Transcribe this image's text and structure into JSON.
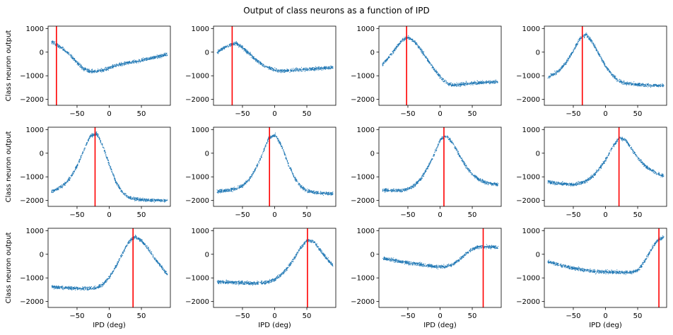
{
  "title": "Output of class neurons as a function of IPD",
  "xlabel": "IPD (deg)",
  "ylabel": "Class neuron output",
  "xlim": [
    -95,
    95
  ],
  "ylim": [
    -2250,
    1100
  ],
  "xticks": [
    -50,
    0,
    50
  ],
  "yticks": [
    1000,
    0,
    -1000,
    -2000
  ],
  "point_color": "#1f77b4",
  "line_color": "#ff0000",
  "chart_data": {
    "type": "scatter",
    "layout": "3x4 grid of subplots",
    "title": "Output of class neurons as a function of IPD",
    "xlabel": "IPD (deg)",
    "ylabel": "Class neuron output",
    "xlim": [
      -95,
      95
    ],
    "ylim": [
      -2250,
      1100
    ],
    "grid": false,
    "panels": [
      {
        "class_ipd": -82,
        "curve_x": [
          -90,
          -80,
          -70,
          -60,
          -50,
          -40,
          -30,
          -20,
          -10,
          0,
          10,
          20,
          30,
          40,
          50,
          60,
          70,
          80,
          90
        ],
        "curve_y": [
          450,
          300,
          100,
          -150,
          -450,
          -700,
          -800,
          -800,
          -750,
          -650,
          -550,
          -480,
          -430,
          -380,
          -320,
          -260,
          -200,
          -140,
          -80
        ]
      },
      {
        "class_ipd": -66,
        "curve_x": [
          -90,
          -80,
          -70,
          -60,
          -50,
          -40,
          -30,
          -20,
          -10,
          0,
          10,
          20,
          30,
          40,
          50,
          60,
          70,
          80,
          90
        ],
        "curve_y": [
          0,
          180,
          330,
          380,
          200,
          -50,
          -300,
          -500,
          -650,
          -750,
          -780,
          -770,
          -750,
          -730,
          -710,
          -690,
          -670,
          -650,
          -630
        ]
      },
      {
        "class_ipd": -52,
        "curve_x": [
          -90,
          -80,
          -70,
          -60,
          -50,
          -40,
          -30,
          -20,
          -10,
          0,
          10,
          20,
          30,
          40,
          50,
          60,
          70,
          80,
          90
        ],
        "curve_y": [
          -500,
          -200,
          150,
          500,
          650,
          450,
          100,
          -300,
          -700,
          -1050,
          -1300,
          -1380,
          -1360,
          -1320,
          -1300,
          -1280,
          -1260,
          -1250,
          -1240
        ]
      },
      {
        "class_ipd": -36,
        "curve_x": [
          -90,
          -80,
          -70,
          -60,
          -50,
          -40,
          -30,
          -20,
          -10,
          0,
          10,
          20,
          30,
          40,
          50,
          60,
          70,
          80,
          90
        ],
        "curve_y": [
          -1050,
          -900,
          -700,
          -350,
          100,
          600,
          750,
          400,
          -100,
          -600,
          -950,
          -1200,
          -1300,
          -1340,
          -1360,
          -1380,
          -1390,
          -1400,
          -1400
        ]
      },
      {
        "class_ipd": -22,
        "curve_x": [
          -90,
          -80,
          -70,
          -60,
          -50,
          -40,
          -30,
          -20,
          -10,
          0,
          10,
          20,
          30,
          40,
          50,
          60,
          70,
          80,
          90
        ],
        "curve_y": [
          -1600,
          -1500,
          -1300,
          -1000,
          -500,
          150,
          750,
          850,
          300,
          -500,
          -1200,
          -1650,
          -1850,
          -1920,
          -1950,
          -1970,
          -1980,
          -1990,
          -2000
        ]
      },
      {
        "class_ipd": -8,
        "curve_x": [
          -90,
          -80,
          -70,
          -60,
          -50,
          -40,
          -30,
          -20,
          -10,
          0,
          10,
          20,
          30,
          40,
          50,
          60,
          70,
          80,
          90
        ],
        "curve_y": [
          -1600,
          -1580,
          -1550,
          -1480,
          -1350,
          -1100,
          -650,
          -50,
          650,
          800,
          350,
          -400,
          -1000,
          -1400,
          -1580,
          -1640,
          -1670,
          -1690,
          -1700
        ]
      },
      {
        "class_ipd": 6,
        "curve_x": [
          -90,
          -80,
          -70,
          -60,
          -50,
          -40,
          -30,
          -20,
          -10,
          0,
          10,
          20,
          30,
          40,
          50,
          60,
          70,
          80,
          90
        ],
        "curve_y": [
          -1550,
          -1560,
          -1560,
          -1560,
          -1500,
          -1350,
          -1050,
          -600,
          -50,
          600,
          750,
          400,
          -100,
          -550,
          -900,
          -1100,
          -1220,
          -1280,
          -1310
        ]
      },
      {
        "class_ipd": 21,
        "curve_x": [
          -90,
          -80,
          -70,
          -60,
          -50,
          -40,
          -30,
          -20,
          -10,
          0,
          10,
          20,
          30,
          40,
          50,
          60,
          70,
          80,
          90
        ],
        "curve_y": [
          -1200,
          -1250,
          -1270,
          -1300,
          -1300,
          -1250,
          -1150,
          -950,
          -650,
          -250,
          250,
          650,
          600,
          200,
          -200,
          -500,
          -700,
          -850,
          -950
        ]
      },
      {
        "class_ipd": 37,
        "curve_x": [
          -90,
          -80,
          -70,
          -60,
          -50,
          -40,
          -30,
          -20,
          -10,
          0,
          10,
          20,
          30,
          40,
          50,
          60,
          70,
          80,
          90
        ],
        "curve_y": [
          -1350,
          -1380,
          -1400,
          -1420,
          -1430,
          -1440,
          -1430,
          -1400,
          -1250,
          -950,
          -500,
          50,
          550,
          750,
          600,
          250,
          -150,
          -500,
          -850
        ]
      },
      {
        "class_ipd": 51,
        "curve_x": [
          -90,
          -80,
          -70,
          -60,
          -50,
          -40,
          -30,
          -20,
          -10,
          0,
          10,
          20,
          30,
          40,
          50,
          60,
          70,
          80,
          90
        ],
        "curve_y": [
          -1150,
          -1160,
          -1170,
          -1180,
          -1190,
          -1200,
          -1210,
          -1200,
          -1150,
          -1050,
          -850,
          -550,
          -150,
          300,
          600,
          550,
          200,
          -150,
          -450
        ]
      },
      {
        "class_ipd": 67,
        "curve_x": [
          -90,
          -80,
          -70,
          -60,
          -50,
          -40,
          -30,
          -20,
          -10,
          0,
          10,
          20,
          30,
          40,
          50,
          60,
          70,
          80,
          90
        ],
        "curve_y": [
          -150,
          -200,
          -250,
          -300,
          -350,
          -380,
          -420,
          -460,
          -500,
          -520,
          -500,
          -400,
          -200,
          50,
          250,
          330,
          340,
          320,
          300
        ]
      },
      {
        "class_ipd": 83,
        "curve_x": [
          -90,
          -80,
          -70,
          -60,
          -50,
          -40,
          -30,
          -20,
          -10,
          0,
          10,
          20,
          30,
          40,
          50,
          60,
          70,
          80,
          90
        ],
        "curve_y": [
          -300,
          -380,
          -450,
          -520,
          -580,
          -630,
          -670,
          -700,
          -720,
          -730,
          -740,
          -740,
          -750,
          -740,
          -650,
          -300,
          200,
          600,
          750
        ]
      }
    ]
  }
}
